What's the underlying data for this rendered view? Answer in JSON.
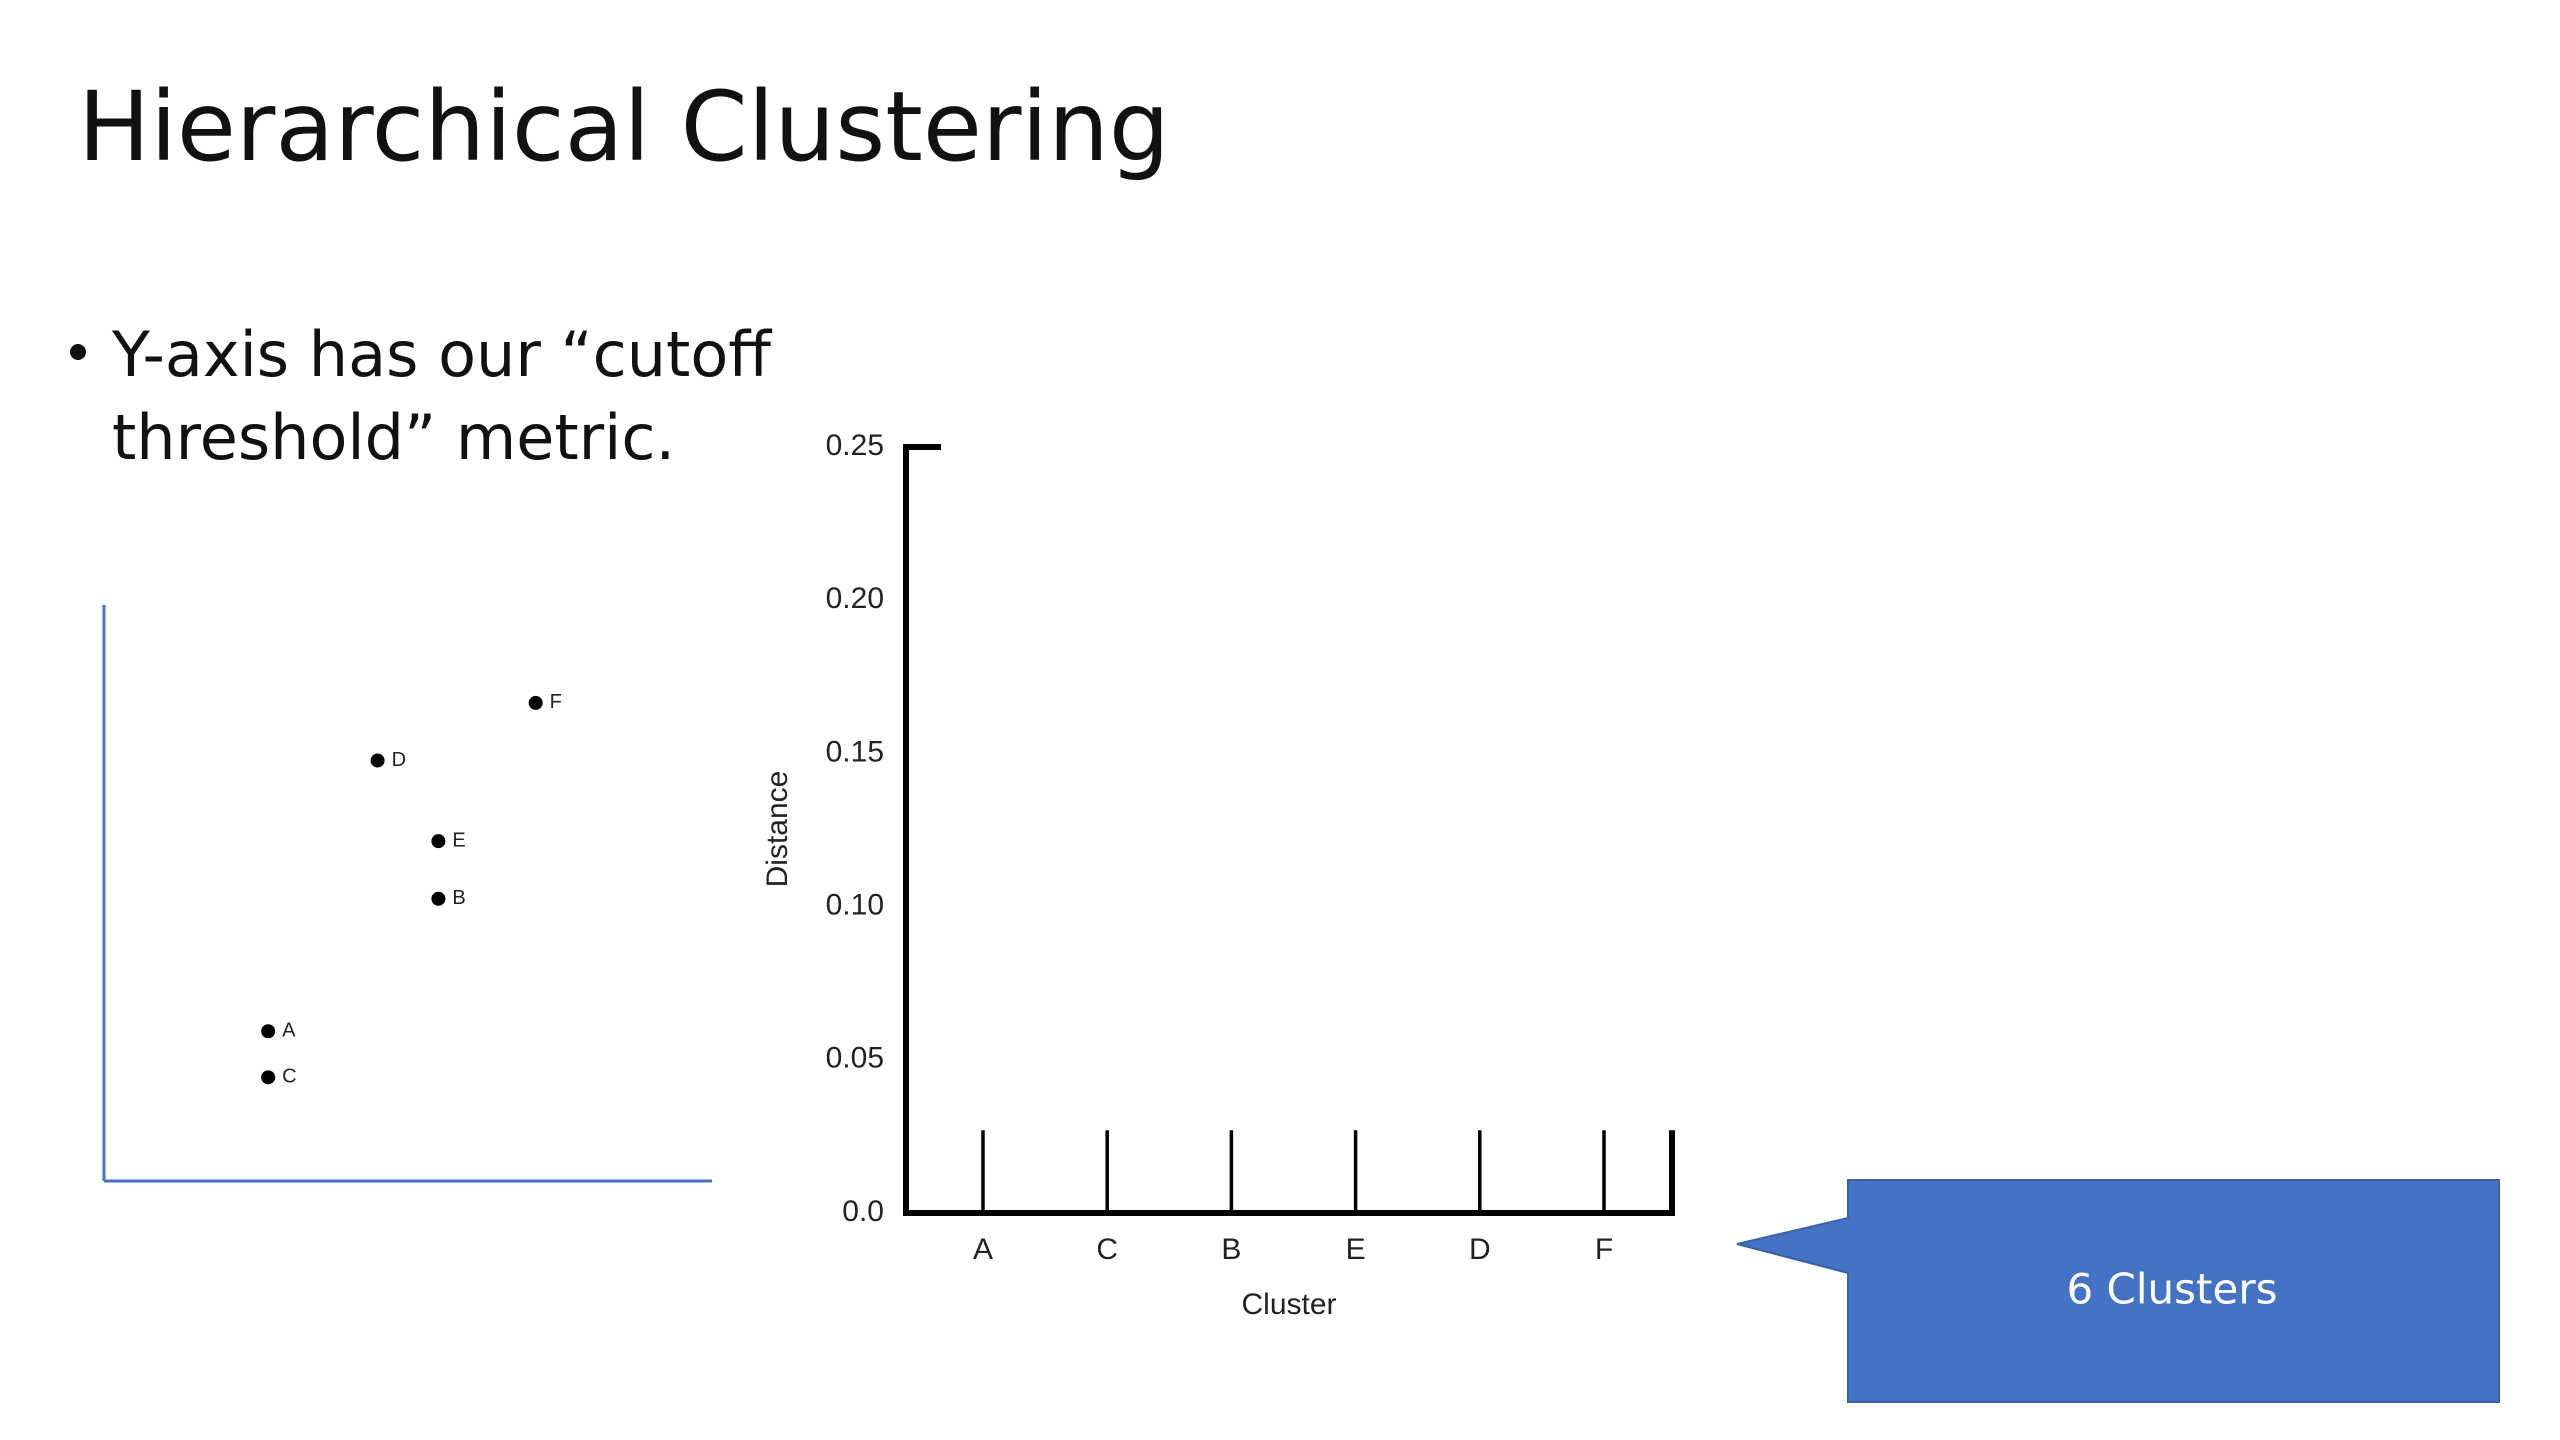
{
  "title": "Hierarchical Clustering",
  "bullet": [
    "Y-axis has our “cutoff",
    "threshold” metric."
  ],
  "callout": "6 Clusters",
  "chart_data": [
    {
      "type": "scatter",
      "color": "#000000",
      "axis_color": "#4472c4",
      "labels": [
        "A",
        "C",
        "D",
        "E",
        "B",
        "F"
      ],
      "x": [
        2.7,
        2.7,
        4.5,
        5.5,
        5.5,
        7.1
      ],
      "values": [
        2.6,
        1.8,
        7.3,
        5.9,
        4.9,
        8.3
      ],
      "xlim": [
        0,
        10
      ],
      "ylim": [
        0,
        10
      ]
    },
    {
      "type": "dendrogram",
      "color": "#000000",
      "xlabel": "Cluster",
      "ylabel": "Distance",
      "categories": [
        "A",
        "C",
        "B",
        "E",
        "D",
        "F"
      ],
      "values": [
        0.027,
        0.027,
        0.027,
        0.027,
        0.027,
        0.027
      ],
      "ylim": [
        0,
        0.25
      ],
      "yticks": [
        {
          "value": 0,
          "label": "0.0"
        },
        0.05,
        {
          "value": 0.1,
          "label": "0.10"
        },
        0.15,
        {
          "value": 0.2,
          "label": "0.20"
        },
        0.25
      ]
    }
  ]
}
